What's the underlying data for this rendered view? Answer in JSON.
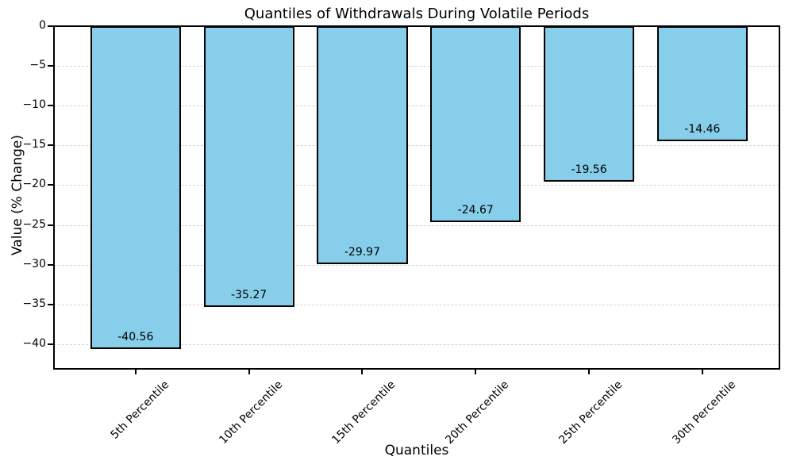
{
  "chart_data": {
    "type": "bar",
    "title": "Quantiles of Withdrawals During Volatile Periods",
    "xlabel": "Quantiles",
    "ylabel": "Value (% Change)",
    "categories": [
      "5th Percentile",
      "10th Percentile",
      "15th Percentile",
      "20th Percentile",
      "25th Percentile",
      "30th Percentile"
    ],
    "values": [
      -40.56,
      -35.27,
      -29.97,
      -24.67,
      -19.56,
      -14.46
    ],
    "bar_labels": [
      "-40.56",
      "-35.27",
      "-29.97",
      "-24.67",
      "-19.56",
      "-14.46"
    ],
    "ytick_values": [
      0,
      -5,
      -10,
      -15,
      -20,
      -25,
      -30,
      -35,
      -40
    ],
    "ytick_labels": [
      "0",
      "−5",
      "−10",
      "−15",
      "−20",
      "−25",
      "−30",
      "−35",
      "−40"
    ],
    "ylim": [
      -43,
      0
    ],
    "xlim": [
      -0.72,
      5.68
    ],
    "bar_half_width": 0.4,
    "grid": {
      "axis": "y",
      "style": "dashed",
      "on": true
    },
    "legend": {
      "visible": false
    },
    "colors": {
      "bar_fill": "#87CEEB",
      "bar_edge": "#000000",
      "grid": "#d3d3d3",
      "text": "#000000",
      "background": "#ffffff"
    }
  }
}
